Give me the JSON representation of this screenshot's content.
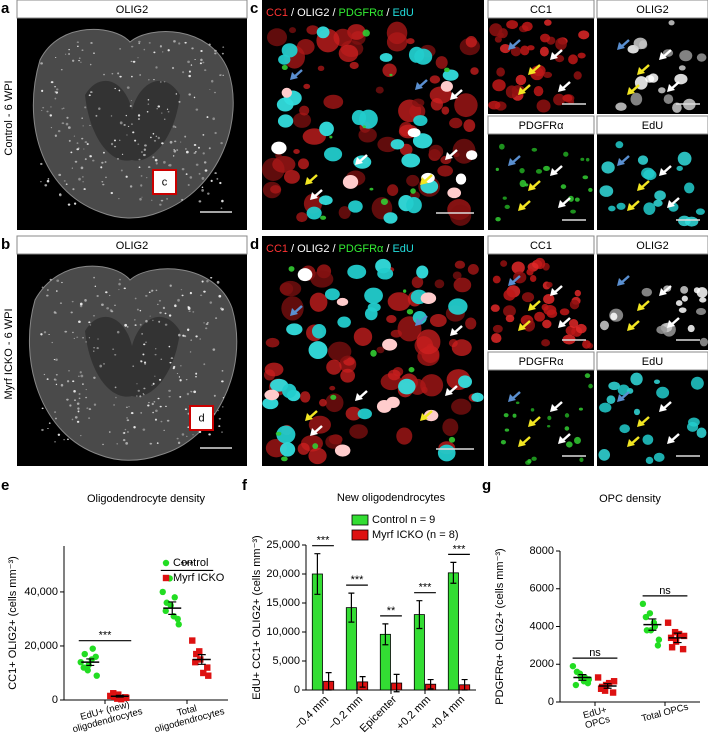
{
  "panels": {
    "a": {
      "label": "a",
      "title": "OLIG2",
      "condition": "Control - 6 WPI",
      "inset": "c"
    },
    "b": {
      "label": "b",
      "title": "OLIG2",
      "condition": "Myrf ICKO - 6 WPI",
      "inset": "d"
    },
    "c": {
      "label": "c",
      "stains": [
        "CC1",
        "OLIG2",
        "PDGFRα",
        "EdU"
      ],
      "separator": "/",
      "channels": [
        "CC1",
        "OLIG2",
        "PDGFRα",
        "EdU"
      ]
    },
    "d": {
      "label": "d",
      "stains": [
        "CC1",
        "OLIG2",
        "PDGFRα",
        "EdU"
      ],
      "separator": "/",
      "channels": [
        "CC1",
        "OLIG2",
        "PDGFRα",
        "EdU"
      ]
    }
  },
  "chart_data": [
    {
      "type": "dot",
      "label": "e",
      "title": "Oligodendrocyte density",
      "y_label": "CC1+ OLIG2+ (cells mm⁻³)",
      "categories": [
        [
          "EdU+ (new)",
          "oligodendrocytes"
        ],
        [
          "Total",
          "oligodendrocytes"
        ]
      ],
      "series": [
        {
          "name": "Control",
          "color": "#22dd22",
          "marker": "circle",
          "values": [
            14000,
            34000
          ],
          "errors": [
            1200,
            2300
          ],
          "points": [
            [
              14000,
              11000,
              13000,
              16000,
              9000,
              12000,
              17000,
              15000,
              19000
            ],
            [
              40000,
              45000,
              35000,
              30000,
              28000,
              33000,
              36000,
              31000,
              38000
            ]
          ]
        },
        {
          "name": "Myrf ICKO",
          "color": "#dd1111",
          "marker": "square",
          "values": [
            1400,
            15000
          ],
          "errors": [
            300,
            1800
          ],
          "points": [
            [
              1500,
              500,
              2000,
              1000,
              800,
              2500,
              1200,
              300
            ],
            [
              22000,
              18000,
              15000,
              12000,
              9000,
              14000,
              17000,
              10000
            ]
          ]
        }
      ],
      "annotations": [
        "***",
        "***"
      ],
      "ylim": [
        0,
        57000
      ],
      "yticks": [
        0,
        {
          "value": 20000,
          "label": "20,000"
        },
        {
          "value": 40000,
          "label": "40,000"
        }
      ]
    },
    {
      "type": "bar",
      "label": "f",
      "title": "New oligodendrocytes",
      "y_label": "EdU+ CC1+ OLIG2+ (cells mm⁻³)",
      "categories": [
        "−0.4 mm",
        "−0.2 mm",
        "Epicenter",
        "+0.2 mm",
        "+0.4 mm"
      ],
      "series": [
        {
          "name": "Control n = 9",
          "color": "#33dd33",
          "values": [
            20000,
            14200,
            9600,
            13000,
            20200
          ],
          "errors": [
            3500,
            2500,
            1800,
            2400,
            1800
          ]
        },
        {
          "name": "Myrf ICKO (n = 8)",
          "color": "#dd1111",
          "values": [
            1500,
            1400,
            1200,
            1000,
            900
          ],
          "errors": [
            1500,
            900,
            1500,
            800,
            900
          ]
        }
      ],
      "annotations": [
        "***",
        "***",
        "**",
        "***",
        "***"
      ],
      "ylim": [
        0,
        25000
      ],
      "yticks": [
        0,
        {
          "value": 5000,
          "label": "5,000"
        },
        {
          "value": 10000,
          "label": "10,000"
        },
        {
          "value": 15000,
          "label": "15,000"
        },
        {
          "value": 20000,
          "label": "20,000"
        },
        {
          "value": 25000,
          "label": "25,000"
        }
      ]
    },
    {
      "type": "dot",
      "label": "g",
      "title": "OPC density",
      "y_label": "PDGFRα+ OLIG2+ (cells mm⁻³)",
      "categories": [
        [
          "EdU+",
          "OPCs"
        ],
        [
          "Total OPCs"
        ]
      ],
      "series": [
        {
          "name": "Control",
          "color": "#22dd22",
          "marker": "circle",
          "values": [
            1300,
            4100
          ],
          "errors": [
            150,
            300
          ],
          "points": [
            [
              1900,
              1500,
              1300,
              1000,
              1200,
              900,
              1600,
              1100,
              1300
            ],
            [
              5200,
              4700,
              3800,
              3000,
              3300,
              4500,
              3800,
              4200,
              4000
            ]
          ]
        },
        {
          "name": "Myrf ICKO",
          "color": "#dd1111",
          "marker": "square",
          "values": [
            850,
            3400
          ],
          "errors": [
            120,
            250
          ],
          "points": [
            [
              1300,
              600,
              900,
              500,
              1100,
              700,
              800,
              1000
            ],
            [
              4200,
              3700,
              3200,
              2800,
              3500,
              3400,
              2900,
              3600
            ]
          ]
        }
      ],
      "annotations": [
        "ns",
        "ns"
      ],
      "ylim": [
        0,
        8000
      ],
      "yticks": [
        0,
        2000,
        4000,
        6000,
        8000
      ]
    }
  ]
}
